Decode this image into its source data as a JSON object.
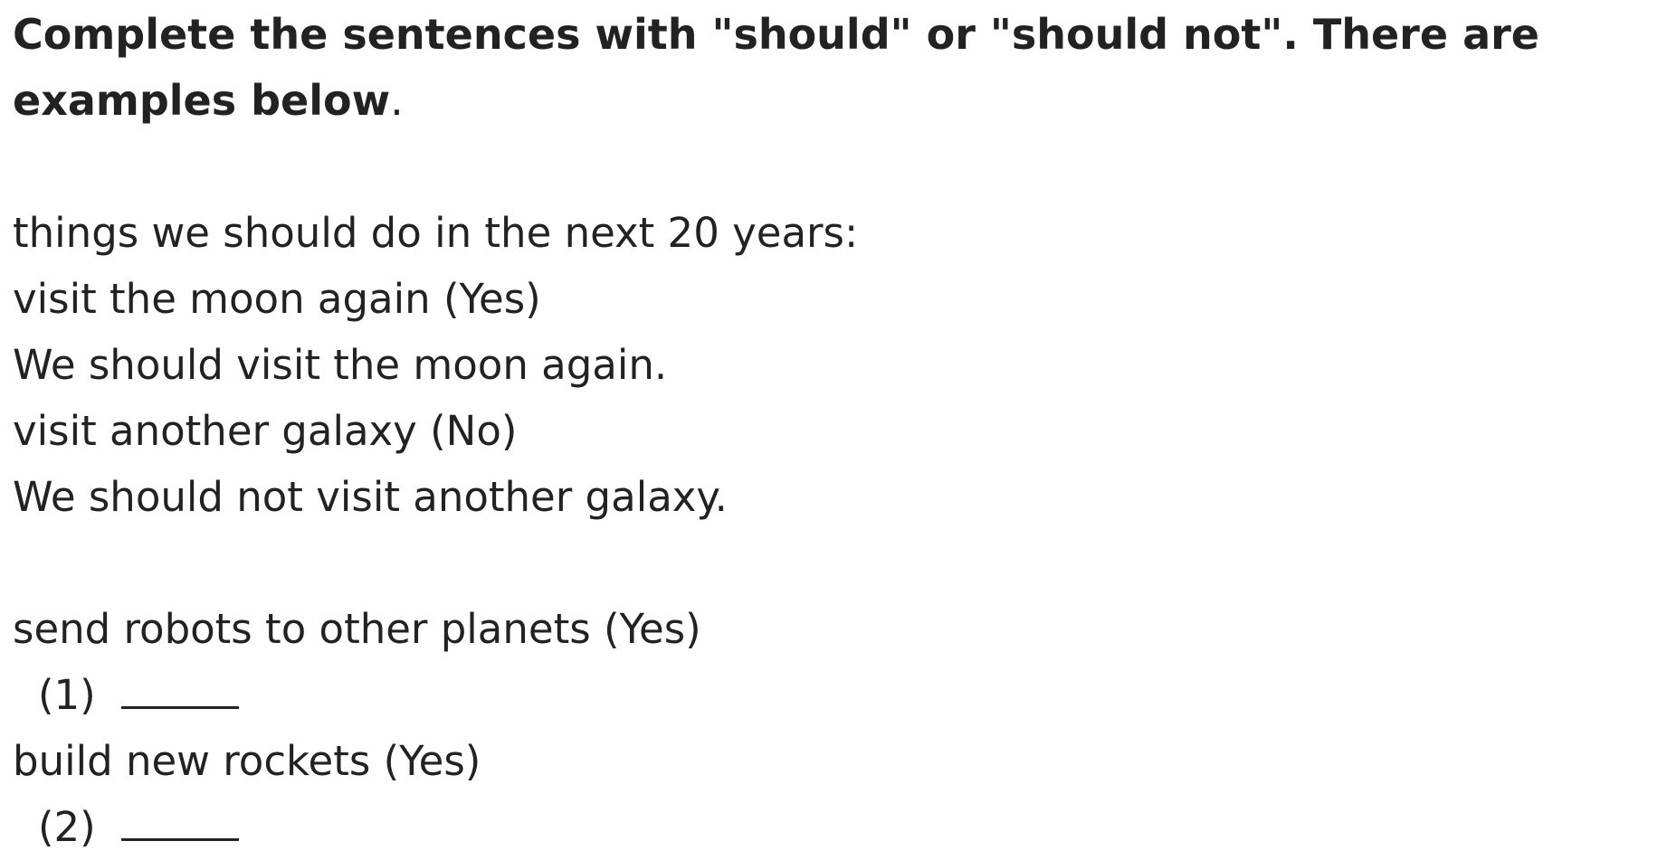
{
  "instruction": {
    "text": "Complete the sentences with \"should\" or \"should not\". There are examples below",
    "trailing_punctuation": "."
  },
  "examples": {
    "heading": "things we should do in the next 20 years:",
    "items": [
      {
        "prompt": "visit the moon again (Yes)",
        "sentence": "We should visit the moon again."
      },
      {
        "prompt": "visit another galaxy (No)",
        "sentence": "We should not visit another galaxy."
      }
    ]
  },
  "questions": [
    {
      "prompt": "send robots to other planets (Yes)",
      "number": "(1)",
      "answer": ""
    },
    {
      "prompt": "build new rockets (Yes)",
      "number": "(2)",
      "answer": ""
    }
  ]
}
